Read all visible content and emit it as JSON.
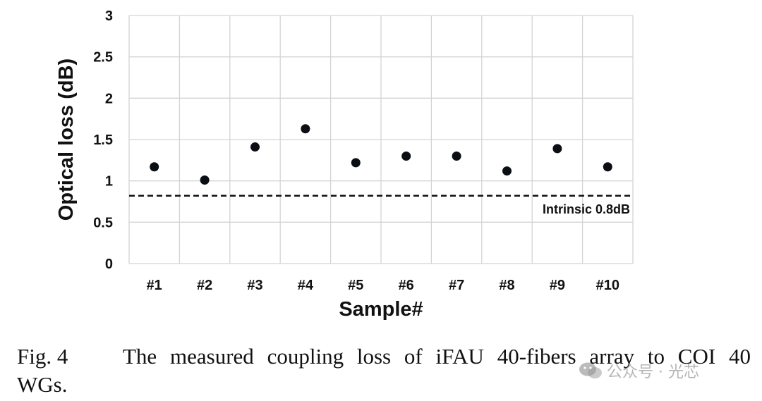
{
  "chart_data": {
    "type": "scatter",
    "categories": [
      "#1",
      "#2",
      "#3",
      "#4",
      "#5",
      "#6",
      "#7",
      "#8",
      "#9",
      "#10"
    ],
    "values": [
      1.17,
      1.01,
      1.41,
      1.63,
      1.22,
      1.3,
      1.3,
      1.12,
      1.39,
      1.17
    ],
    "xlabel": "Sample#",
    "ylabel": "Optical loss (dB)",
    "ylim": [
      0,
      3
    ],
    "yticks": [
      "0",
      "0.5",
      "1",
      "1.5",
      "2",
      "2.5",
      "3"
    ],
    "grid": true,
    "reference_line": {
      "value": 0.82,
      "label": "Intrinsic 0.8dB",
      "style": "dashed"
    },
    "marker_color": "#0b0f14"
  },
  "caption": {
    "number": "Fig. 4",
    "text_line1": "The measured coupling loss of iFAU 40-fibers array to COI 40",
    "text_line2": "WGs."
  },
  "watermark": {
    "text": "公众号 · 光芯",
    "icon": "wechat-icon"
  }
}
